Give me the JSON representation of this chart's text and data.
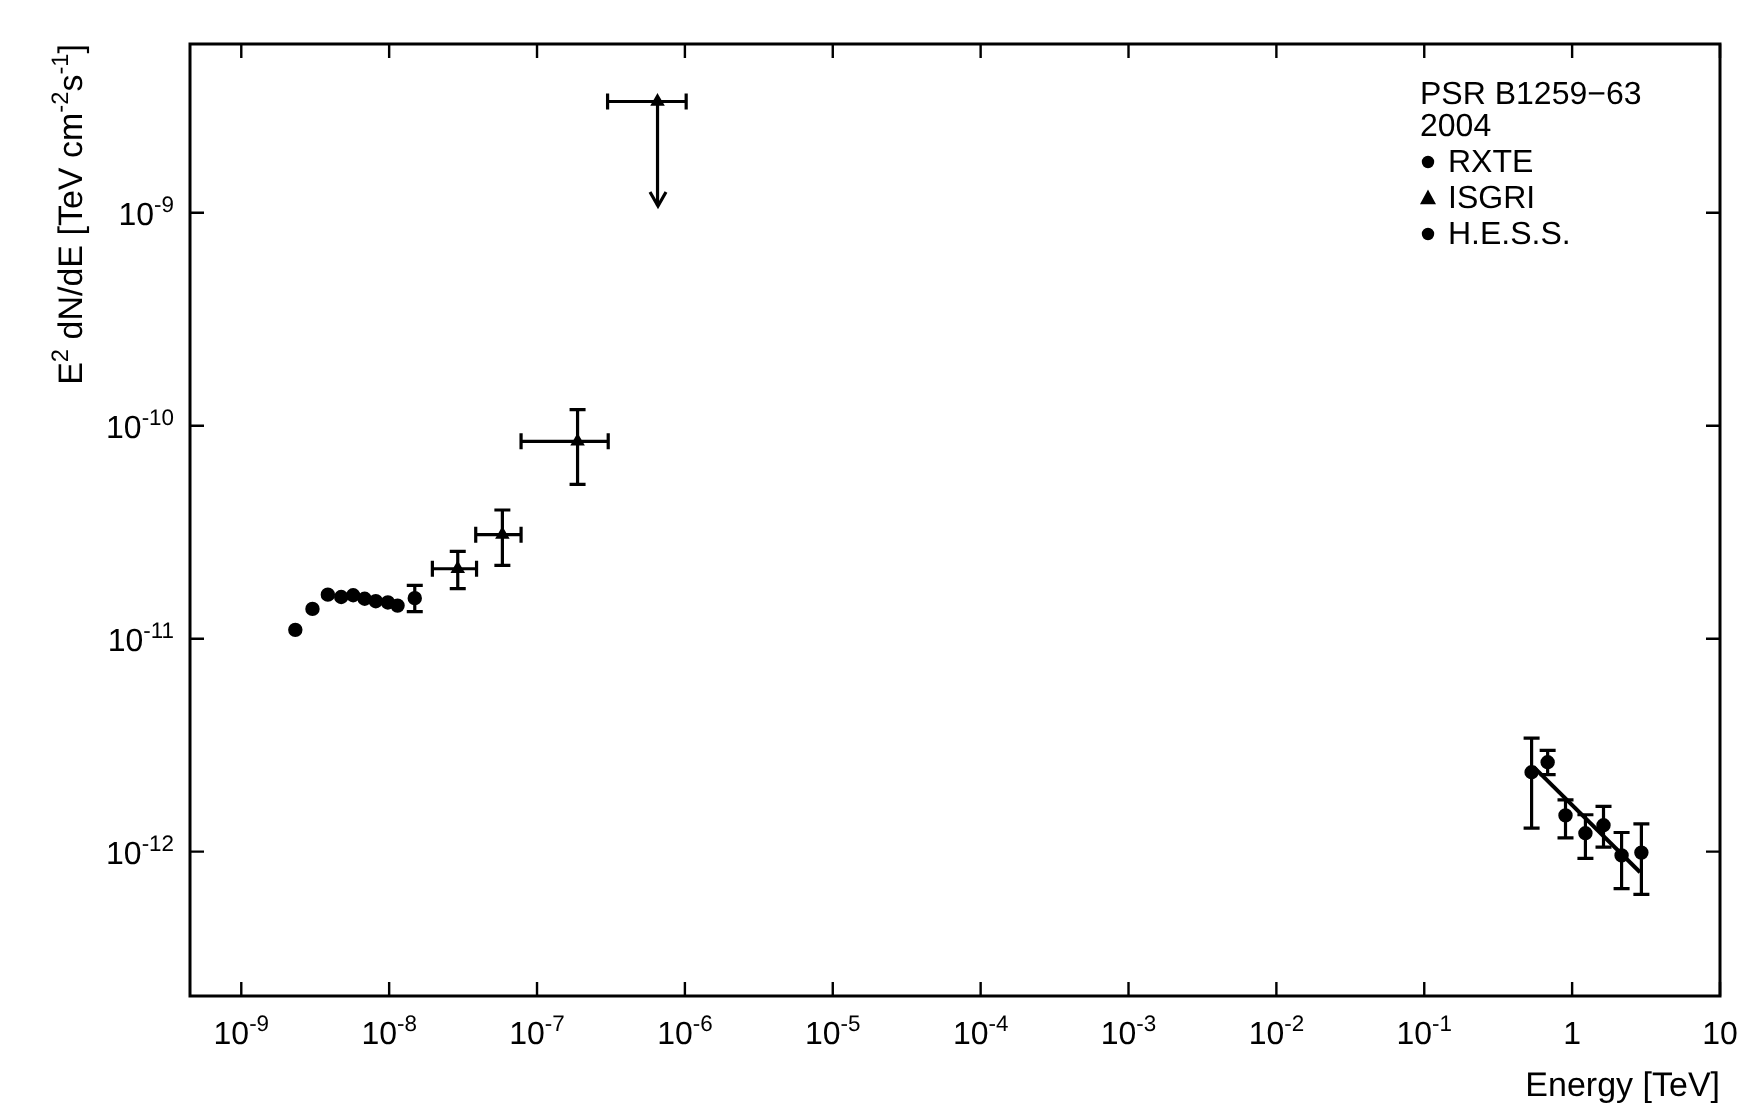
{
  "chart_data": {
    "type": "scatter",
    "xlabel": "Energy [TeV]",
    "ylabel": "E$^{2}$ dN/dE [TeV cm$^{-2}$s$^{-1}$]",
    "legend_title": "PSR B1259−63\n2004",
    "legend": "top right",
    "grid": false,
    "log": "xy",
    "xlim": [
      4.5e-10,
      10
    ],
    "ylim": [
      2.1e-13,
      6.2e-09
    ],
    "xticks": [
      {
        "value": 1e-09,
        "label": "10$^{-9}$"
      },
      {
        "value": 1e-08,
        "label": "10$^{-8}$"
      },
      {
        "value": 1e-07,
        "label": "10$^{-7}$"
      },
      {
        "value": 1e-06,
        "label": "10$^{-6}$"
      },
      {
        "value": 1e-05,
        "label": "10$^{-5}$"
      },
      {
        "value": 0.0001,
        "label": "10$^{-4}$"
      },
      {
        "value": 0.001,
        "label": "10$^{-3}$"
      },
      {
        "value": 0.01,
        "label": "10$^{-2}$"
      },
      {
        "value": 0.1,
        "label": "10$^{-1}$"
      },
      1,
      10
    ],
    "yticks": [
      {
        "value": 1e-12,
        "label": "10$^{-12}$"
      },
      {
        "value": 1e-11,
        "label": "10$^{-11}$"
      },
      {
        "value": 1e-10,
        "label": "10$^{-10}$"
      },
      {
        "value": 1e-09,
        "label": "10$^{-9}$"
      }
    ],
    "series": [
      {
        "name": "RXTE",
        "color": "#000000",
        "marker": "circle",
        "x": [
          2.32e-09,
          3.03e-09,
          3.85e-09,
          4.74e-09,
          5.71e-09,
          6.83e-09,
          8.12e-09,
          9.8e-09,
          1.14e-08,
          1.49e-08
        ],
        "values": [
          1.1e-11,
          1.38e-11,
          1.61e-11,
          1.57e-11,
          1.6e-11,
          1.54e-11,
          1.5e-11,
          1.48e-11,
          1.43e-11,
          1.55e-11
        ],
        "errors": [
          null,
          null,
          null,
          null,
          null,
          null,
          null,
          null,
          null,
          [
            1.34e-11,
            1.78e-11
          ]
        ]
      },
      {
        "name": "ISGRI",
        "color": "#000000",
        "marker": "triangle",
        "x": [
          2.91e-08,
          5.83e-08,
          1.88e-07,
          6.53e-07
        ],
        "values": [
          2.13e-11,
          3.08e-11,
          8.45e-11,
          3.33e-09
        ],
        "errors": [
          [
            1.72e-11,
            2.57e-11
          ],
          [
            2.21e-11,
            4.02e-11
          ],
          [
            5.3e-11,
            1.19e-10
          ],
          [
            1.08e-09,
            3.33e-09
          ]
        ],
        "xerrors": [
          [
            1.96e-08,
            3.9e-08
          ],
          [
            3.85e-08,
            7.8e-08
          ],
          [
            7.8e-08,
            3.03e-07
          ],
          [
            3e-07,
            1.02e-06
          ]
        ]
      },
      {
        "name": "H.E.S.S.",
        "color": "#000000",
        "marker": "circle",
        "x": [
          0.532,
          0.683,
          0.902,
          1.23,
          1.63,
          2.16,
          2.94
        ],
        "values": [
          2.36e-12,
          2.63e-12,
          1.48e-12,
          1.22e-12,
          1.33e-12,
          9.6e-13,
          9.9e-13
        ],
        "errors": [
          [
            1.29e-12,
            3.41e-12
          ],
          [
            2.3e-12,
            2.99e-12
          ],
          [
            1.16e-12,
            1.75e-12
          ],
          [
            9.3e-13,
            1.49e-12
          ],
          [
            1.05e-12,
            1.63e-12
          ],
          [
            6.7e-13,
            1.23e-12
          ],
          [
            6.3e-13,
            1.35e-12
          ]
        ]
      },
      {
        "type": "line",
        "color": "#000000",
        "x": [
          0.548,
          2.88
        ],
        "values": [
          2.5e-12,
          8e-13
        ]
      }
    ]
  }
}
